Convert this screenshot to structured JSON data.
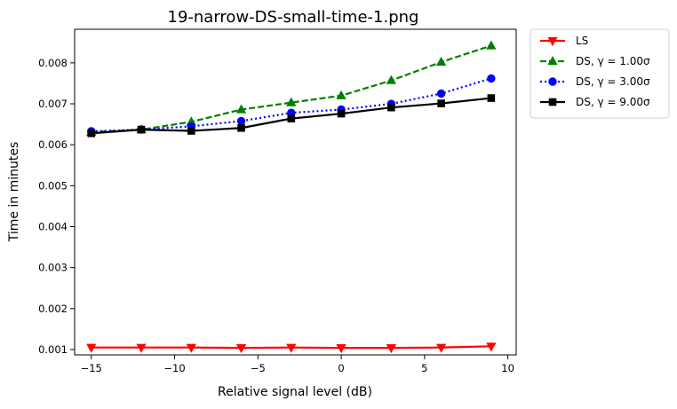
{
  "chart_data": {
    "type": "line",
    "title": "19-narrow-DS-small-time-1.png",
    "xlabel": "Relative signal level (dB)",
    "ylabel": "Time in minutes",
    "xlim": [
      -16,
      10.5
    ],
    "ylim": [
      0.00087,
      0.00882
    ],
    "xticks": [
      -15,
      -10,
      -5,
      0,
      5,
      10
    ],
    "xtick_labels": [
      "−15",
      "−10",
      "−5",
      "0",
      "5",
      "10"
    ],
    "yticks": [
      0.001,
      0.002,
      0.003,
      0.004,
      0.005,
      0.006,
      0.007,
      0.008
    ],
    "ytick_labels": [
      "0.001",
      "0.002",
      "0.003",
      "0.004",
      "0.005",
      "0.006",
      "0.007",
      "0.008"
    ],
    "grid": false,
    "legend_position": "outside-top-right",
    "x": [
      -15,
      -12,
      -9,
      -6,
      -3,
      0,
      3,
      6,
      9
    ],
    "series": [
      {
        "name": "LS",
        "color": "#ff0000",
        "marker": "triangle-down",
        "linestyle": "solid",
        "values": [
          0.00105,
          0.00105,
          0.00105,
          0.00104,
          0.00105,
          0.00104,
          0.00104,
          0.00105,
          0.00108
        ]
      },
      {
        "name": "DS, γ = 1.00σ",
        "color": "#008000",
        "marker": "triangle-up",
        "linestyle": "dashed",
        "values": [
          0.00631,
          0.00637,
          0.00656,
          0.00686,
          0.00703,
          0.0072,
          0.00757,
          0.00802,
          0.00842
        ]
      },
      {
        "name": "DS, γ = 3.00σ",
        "color": "#0000ff",
        "marker": "circle",
        "linestyle": "dotted",
        "values": [
          0.00633,
          0.00637,
          0.00645,
          0.00658,
          0.00678,
          0.00686,
          0.007,
          0.00725,
          0.00762
        ]
      },
      {
        "name": "DS, γ = 9.00σ",
        "color": "#000000",
        "marker": "square",
        "linestyle": "solid",
        "values": [
          0.00628,
          0.00637,
          0.00634,
          0.00641,
          0.00664,
          0.00676,
          0.00691,
          0.00701,
          0.00714
        ]
      }
    ]
  }
}
